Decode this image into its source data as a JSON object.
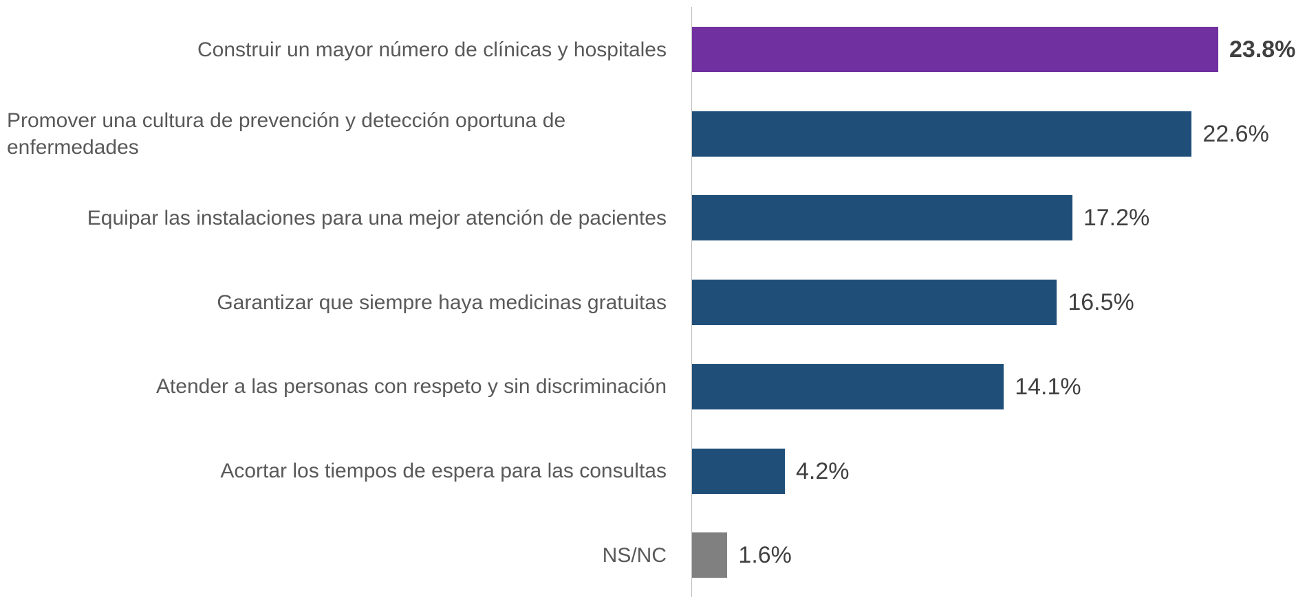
{
  "chart_data": {
    "type": "bar",
    "orientation": "horizontal",
    "categories": [
      "Construir un mayor número de clínicas y hospitales",
      "Promover una cultura de prevención y detección oportuna de enfermedades",
      "Equipar las instalaciones para una mejor atención de pacientes",
      "Garantizar que siempre haya medicinas gratuitas",
      "Atender a las personas con respeto y sin discriminación",
      "Acortar los tiempos de espera para las consultas",
      "NS/NC"
    ],
    "values": [
      23.8,
      22.6,
      17.2,
      16.5,
      14.1,
      4.2,
      1.6
    ],
    "value_labels": [
      "23.8%",
      "22.6%",
      "17.2%",
      "16.5%",
      "14.1%",
      "4.2%",
      "1.6%"
    ],
    "colors": [
      "#7030a0",
      "#1f4e79",
      "#1f4e79",
      "#1f4e79",
      "#1f4e79",
      "#1f4e79",
      "#808080"
    ]
  }
}
